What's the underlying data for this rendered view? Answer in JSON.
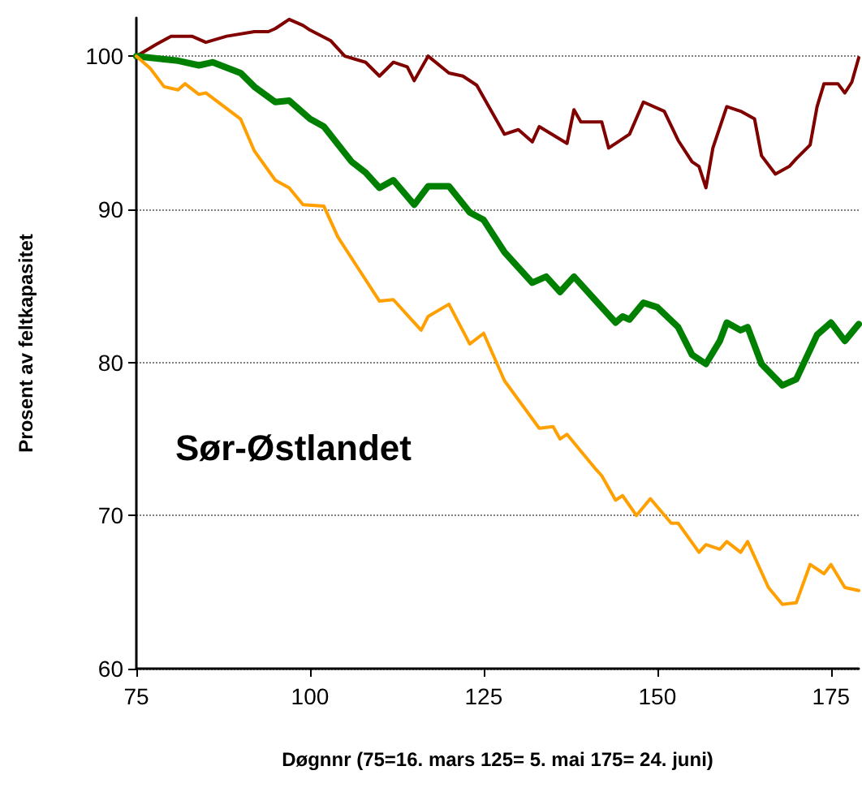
{
  "chart_data": {
    "type": "line",
    "xlabel": "Døgnnr (75=16. mars 125= 5. mai 175= 24. juni)",
    "ylabel": "Prosent av feltkapasitet",
    "annotations": [
      "Sør-Østlandet"
    ],
    "xlim": [
      75,
      179
    ],
    "xticks": [
      75,
      100,
      125,
      150,
      175
    ],
    "ylim": [
      60,
      102.5
    ],
    "yticks": [
      60,
      70,
      80,
      90,
      100
    ],
    "grid": "y",
    "marker": "none",
    "line_style": "solid",
    "series": [
      {
        "color": "#800000",
        "x": [
          75,
          78,
          80,
          83,
          85,
          88,
          92,
          94,
          95,
          97,
          99,
          100,
          103,
          105,
          108,
          110,
          112,
          114,
          115,
          117,
          120,
          122,
          124,
          126,
          128,
          130,
          132,
          133,
          137,
          138,
          139,
          142,
          143,
          146,
          148,
          151,
          153,
          155,
          156,
          157,
          158,
          160,
          162,
          164,
          165,
          167,
          169,
          170,
          172,
          173,
          174,
          176,
          177,
          178,
          179
        ],
        "values": [
          100,
          100.8,
          101.3,
          101.3,
          100.9,
          101.3,
          101.6,
          101.6,
          101.8,
          102.4,
          102,
          101.7,
          101,
          100,
          99.6,
          98.7,
          99.6,
          99.3,
          98.4,
          100,
          98.9,
          98.7,
          98.1,
          96.5,
          94.9,
          95.2,
          94.4,
          95.4,
          94.3,
          96.5,
          95.7,
          95.7,
          94,
          94.9,
          97,
          96.4,
          94.5,
          93.1,
          92.8,
          91.4,
          94,
          96.7,
          96.4,
          95.9,
          93.5,
          92.3,
          92.8,
          93.3,
          94.2,
          96.7,
          98.2,
          98.2,
          97.6,
          98.3,
          99.9
        ]
      },
      {
        "color": "#008000",
        "x": [
          75,
          79,
          81,
          84,
          86,
          90,
          92,
          95,
          97,
          100,
          102,
          106,
          108,
          110,
          112,
          115,
          117,
          120,
          123,
          125,
          128,
          132,
          134,
          136,
          138,
          141,
          144,
          145,
          146,
          148,
          150,
          153,
          155,
          157,
          159,
          160,
          162,
          163,
          165,
          168,
          170,
          173,
          175,
          177,
          179
        ],
        "values": [
          100,
          99.8,
          99.7,
          99.4,
          99.6,
          98.9,
          98,
          97,
          97.1,
          95.9,
          95.4,
          93.1,
          92.4,
          91.4,
          91.9,
          90.3,
          91.5,
          91.5,
          89.8,
          89.3,
          87.2,
          85.2,
          85.6,
          84.6,
          85.6,
          84.1,
          82.6,
          83,
          82.8,
          83.9,
          83.6,
          82.3,
          80.5,
          79.9,
          81.4,
          82.6,
          82.1,
          82.3,
          79.9,
          78.5,
          78.9,
          81.8,
          82.6,
          81.4,
          82.5
        ]
      },
      {
        "color": "#ffa000",
        "x": [
          75,
          77,
          79,
          81,
          82,
          84,
          85,
          90,
          92,
          95,
          97,
          99,
          102,
          104,
          107,
          110,
          112,
          116,
          117,
          120,
          123,
          125,
          128,
          133,
          135,
          136,
          137,
          141,
          142,
          144,
          145,
          147,
          149,
          152,
          153,
          156,
          157,
          159,
          160,
          162,
          163,
          166,
          168,
          170,
          172,
          174,
          175,
          177,
          179
        ],
        "values": [
          100,
          99.2,
          98,
          97.8,
          98.2,
          97.5,
          97.6,
          95.9,
          93.8,
          91.9,
          91.4,
          90.3,
          90.2,
          88.2,
          86.1,
          84,
          84.1,
          82.1,
          83,
          83.8,
          81.2,
          81.9,
          78.8,
          75.7,
          75.8,
          75,
          75.3,
          73.1,
          72.6,
          71,
          71.3,
          70,
          71.1,
          69.5,
          69.5,
          67.6,
          68.1,
          67.8,
          68.3,
          67.6,
          68.3,
          65.3,
          64.2,
          64.3,
          66.8,
          66.2,
          66.8,
          65.3,
          65.1
        ]
      }
    ]
  }
}
